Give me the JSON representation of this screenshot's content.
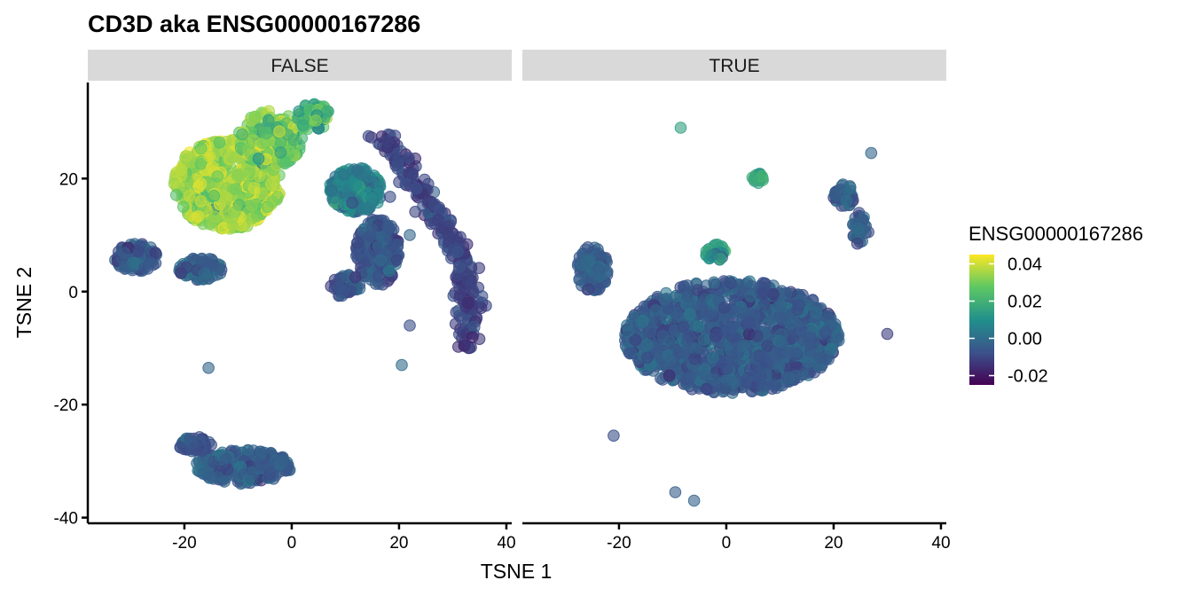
{
  "chart_data": {
    "type": "scatter",
    "title": "CD3D  aka ENSG00000167286",
    "xlabel": "TSNE 1",
    "ylabel": "TSNE 2",
    "xlim": [
      -38,
      41
    ],
    "ylim": [
      -41,
      37
    ],
    "x_ticks": [
      -20,
      0,
      20,
      40
    ],
    "y_ticks": [
      -40,
      -20,
      0,
      20
    ],
    "x_tick_labels": [
      "-20",
      "0",
      "20",
      "40"
    ],
    "y_tick_labels": [
      "-40",
      "-20",
      "0",
      "20"
    ],
    "facets": [
      "FALSE",
      "TRUE"
    ],
    "grid": false,
    "legend": {
      "title": "ENSG00000167286",
      "placement": "right",
      "range": [
        -0.025,
        0.045
      ],
      "ticks": [
        0.04,
        0.02,
        0.0,
        -0.02
      ],
      "tick_labels": [
        "0.04",
        "0.02",
        "0.00",
        "-0.02"
      ],
      "colormap": [
        "#440154",
        "#3b528b",
        "#21908c",
        "#5dc863",
        "#fde725"
      ]
    },
    "clusters": [
      {
        "facet": "FALSE",
        "cx": -12,
        "cy": 19,
        "rx": 10,
        "ry": 8,
        "n": 650,
        "value": 0.034,
        "spread": 0.006
      },
      {
        "facet": "FALSE",
        "cx": -4,
        "cy": 27,
        "rx": 6,
        "ry": 5,
        "n": 180,
        "value": 0.028,
        "spread": 0.008
      },
      {
        "facet": "FALSE",
        "cx": 4,
        "cy": 31,
        "rx": 3,
        "ry": 2.5,
        "n": 60,
        "value": 0.018,
        "spread": 0.008
      },
      {
        "facet": "FALSE",
        "cx": -29,
        "cy": 6,
        "rx": 4,
        "ry": 2.5,
        "n": 120,
        "value": -0.005,
        "spread": 0.004
      },
      {
        "facet": "FALSE",
        "cx": -17,
        "cy": 4,
        "rx": 4,
        "ry": 2,
        "n": 90,
        "value": -0.004,
        "spread": 0.004
      },
      {
        "facet": "FALSE",
        "cx": 12,
        "cy": 18,
        "rx": 5,
        "ry": 4,
        "n": 220,
        "value": 0.004,
        "spread": 0.006
      },
      {
        "facet": "FALSE",
        "cx": 16,
        "cy": 7,
        "rx": 4,
        "ry": 6,
        "n": 200,
        "value": -0.006,
        "spread": 0.004
      },
      {
        "facet": "FALSE",
        "cx": 10,
        "cy": 1,
        "rx": 3,
        "ry": 2,
        "n": 50,
        "value": -0.008,
        "spread": 0.004
      },
      {
        "facet": "FALSE",
        "cx": -9,
        "cy": -31,
        "rx": 9,
        "ry": 3,
        "n": 260,
        "value": -0.004,
        "spread": 0.004
      },
      {
        "facet": "FALSE",
        "cx": -18,
        "cy": -27,
        "rx": 3,
        "ry": 1.5,
        "n": 50,
        "value": -0.007,
        "spread": 0.004
      },
      {
        "facet": "TRUE",
        "cx": 1,
        "cy": -8,
        "rx": 20,
        "ry": 10,
        "n": 1500,
        "value": -0.005,
        "spread": 0.004
      },
      {
        "facet": "TRUE",
        "cx": -25,
        "cy": 4,
        "rx": 3,
        "ry": 4,
        "n": 120,
        "value": -0.005,
        "spread": 0.004
      },
      {
        "facet": "TRUE",
        "cx": 22,
        "cy": 17,
        "rx": 2,
        "ry": 2,
        "n": 40,
        "value": -0.005,
        "spread": 0.004
      },
      {
        "facet": "TRUE",
        "cx": 25,
        "cy": 11,
        "rx": 1.5,
        "ry": 3,
        "n": 40,
        "value": -0.006,
        "spread": 0.004
      },
      {
        "facet": "TRUE",
        "cx": -2,
        "cy": 7,
        "rx": 2,
        "ry": 1.5,
        "n": 30,
        "value": 0.01,
        "spread": 0.006
      },
      {
        "facet": "TRUE",
        "cx": 6,
        "cy": 20,
        "rx": 1.2,
        "ry": 1,
        "n": 15,
        "value": 0.016,
        "spread": 0.003
      }
    ],
    "outliers": [
      {
        "facet": "TRUE",
        "x": -8.5,
        "y": 29,
        "value": 0.015
      },
      {
        "facet": "TRUE",
        "x": -9.5,
        "y": -35.5,
        "value": -0.004
      },
      {
        "facet": "TRUE",
        "x": -6,
        "y": -37,
        "value": -0.003
      },
      {
        "facet": "TRUE",
        "x": -21,
        "y": -25.5,
        "value": -0.008
      },
      {
        "facet": "TRUE",
        "x": 30,
        "y": -7.5,
        "value": -0.012
      },
      {
        "facet": "TRUE",
        "x": 27,
        "y": 24.5,
        "value": -0.002
      },
      {
        "facet": "FALSE",
        "x": -15.5,
        "y": -13.5,
        "value": -0.002
      },
      {
        "facet": "FALSE",
        "x": 20.5,
        "y": -13,
        "value": 0.0
      },
      {
        "facet": "FALSE",
        "x": 22,
        "y": 10,
        "value": -0.002
      },
      {
        "facet": "FALSE",
        "x": 26,
        "y": 12,
        "value": -0.01
      },
      {
        "facet": "FALSE",
        "x": 22,
        "y": -6,
        "value": -0.008
      }
    ]
  }
}
